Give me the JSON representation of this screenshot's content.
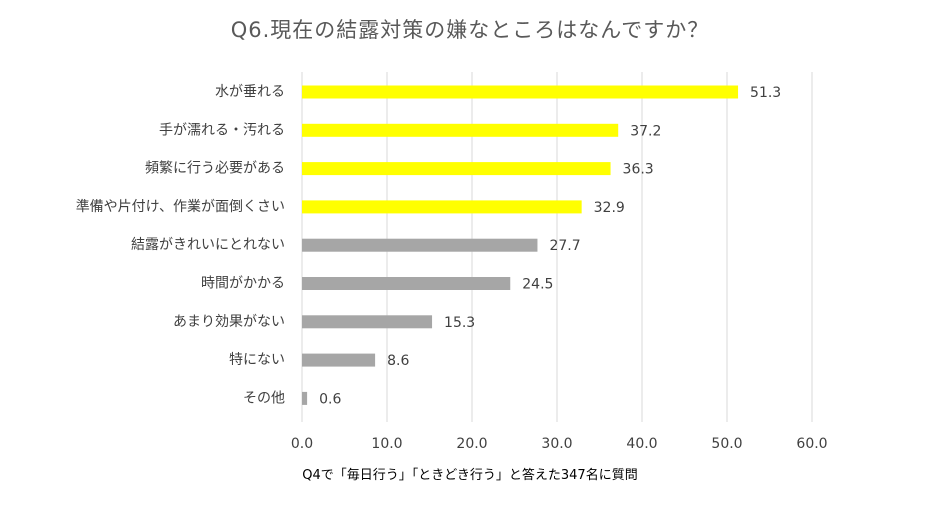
{
  "chart_data": {
    "type": "bar",
    "orientation": "horizontal",
    "title": "Q6.現在の結露対策の嫌なところはなんですか？",
    "categories": [
      "水が垂れる",
      "手が濡れる・汚れる",
      "頻繁に行う必要がある",
      "準備や片付け、作業が面倒くさい",
      "結露がきれいにとれない",
      "時間がかかる",
      "あまり効果がない",
      "特にない",
      "その他"
    ],
    "values": [
      51.3,
      37.2,
      36.3,
      32.9,
      27.7,
      24.5,
      15.3,
      8.6,
      0.6
    ],
    "value_labels": [
      "51.3",
      "37.2",
      "36.3",
      "32.9",
      "27.7",
      "24.5",
      "15.3",
      "8.6",
      "0.6"
    ],
    "highlight_count": 4,
    "colors": {
      "highlight": "#ffff00",
      "normal": "#a6a6a6",
      "grid": "#d9d9d9"
    },
    "xlim": [
      0,
      60
    ],
    "xticks": [
      0,
      10,
      20,
      30,
      40,
      50,
      60
    ],
    "xtick_labels": [
      "0.0",
      "10.0",
      "20.0",
      "30.0",
      "40.0",
      "50.0",
      "60.0"
    ],
    "grid": true,
    "xlabel": "",
    "ylabel": ""
  },
  "footnote": "Q4で「毎日行う」「ときどき行う」と答えた347名に質問"
}
